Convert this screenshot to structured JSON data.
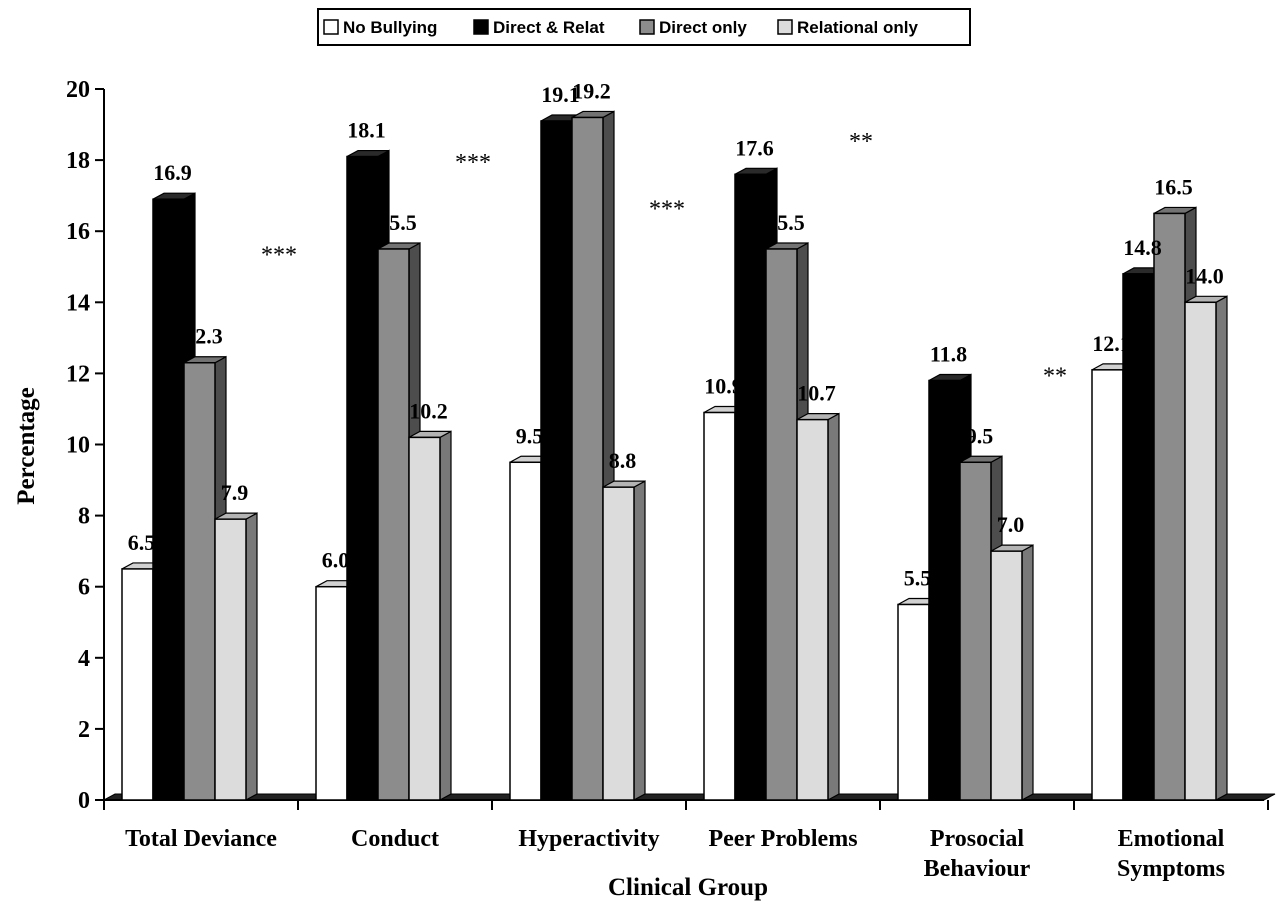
{
  "chart_data": {
    "type": "bar",
    "title": "",
    "xlabel": "Clinical Group",
    "ylabel": "Percentage",
    "ylim": [
      0,
      20
    ],
    "yticks": [
      "0",
      "2",
      "4",
      "6",
      "8",
      "10",
      "12",
      "14",
      "16",
      "18",
      "20"
    ],
    "categories": [
      [
        "Total Deviance"
      ],
      [
        "Conduct"
      ],
      [
        "Hyperactivity"
      ],
      [
        "Peer Problems"
      ],
      [
        "Prosocial",
        "Behaviour"
      ],
      [
        "Emotional",
        "Symptoms"
      ]
    ],
    "series": [
      {
        "name": "No Bullying",
        "color": "#ffffff",
        "values": [
          6.5,
          6.0,
          9.5,
          10.9,
          5.5,
          12.1
        ],
        "labels": [
          "6.5",
          "6.0",
          "9.5",
          "10.9",
          "5.5",
          "12.1"
        ]
      },
      {
        "name": "Direct & Relat",
        "color": "#000000",
        "values": [
          16.9,
          18.1,
          19.1,
          17.6,
          11.8,
          14.8
        ],
        "labels": [
          "16.9",
          "18.1",
          "19.1",
          "17.6",
          "11.8",
          "14.8"
        ]
      },
      {
        "name": "Direct only",
        "color": "#8c8c8c",
        "values": [
          12.3,
          15.5,
          19.2,
          15.5,
          9.5,
          16.5
        ],
        "labels": [
          "12.3",
          "15.5",
          "19.2",
          "15.5",
          "9.5",
          "16.5"
        ]
      },
      {
        "name": "Relational only",
        "color": "#dcdcdc",
        "values": [
          7.9,
          10.2,
          8.8,
          10.7,
          7.0,
          14.0
        ],
        "labels": [
          "7.9",
          "10.2",
          "8.8",
          "10.7",
          "7.0",
          "14.0"
        ]
      }
    ],
    "annotations": [
      {
        "text": "***",
        "category": 0,
        "value": 15.4
      },
      {
        "text": "***",
        "category": 1,
        "value": 18.0
      },
      {
        "text": "***",
        "category": 2,
        "value": 16.7
      },
      {
        "text": "**",
        "category": 3,
        "value": 18.6
      },
      {
        "text": "**",
        "category": 4,
        "value": 12.0
      }
    ],
    "legend_position": "top-center",
    "grid": false
  }
}
